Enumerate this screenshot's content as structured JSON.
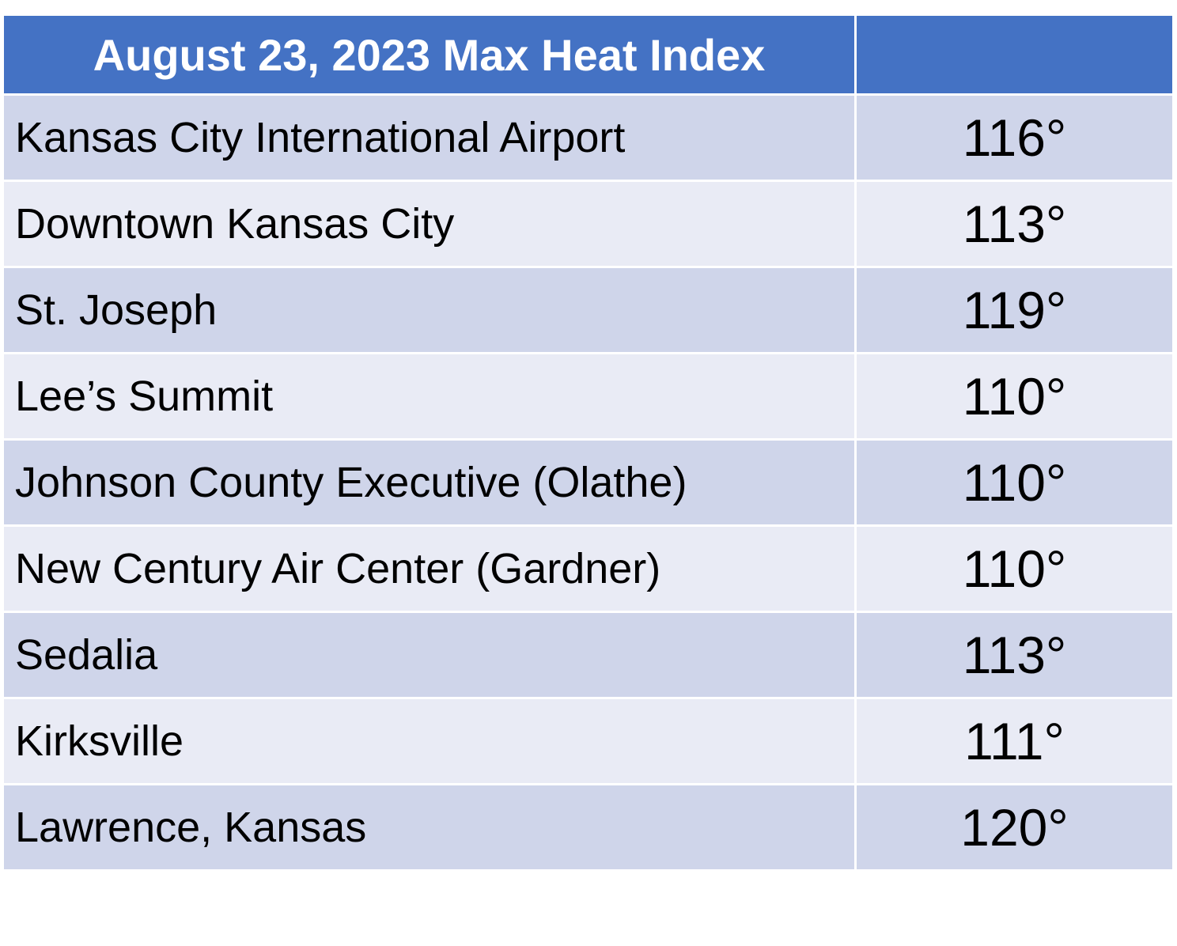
{
  "header": {
    "title": "August 23, 2023 Max Heat Index"
  },
  "table": {
    "rows": [
      [
        "Kansas City International Airport",
        "116°"
      ],
      [
        "Downtown Kansas City",
        "113°"
      ],
      [
        "St. Joseph",
        "119°"
      ],
      [
        "Lee’s Summit",
        "110°"
      ],
      [
        "Johnson County Executive (Olathe)",
        "110°"
      ],
      [
        "New Century Air Center (Gardner)",
        "110°"
      ],
      [
        "Sedalia",
        "113°"
      ],
      [
        "Kirksville",
        "111°"
      ],
      [
        "Lawrence, Kansas",
        "120°"
      ]
    ]
  }
}
